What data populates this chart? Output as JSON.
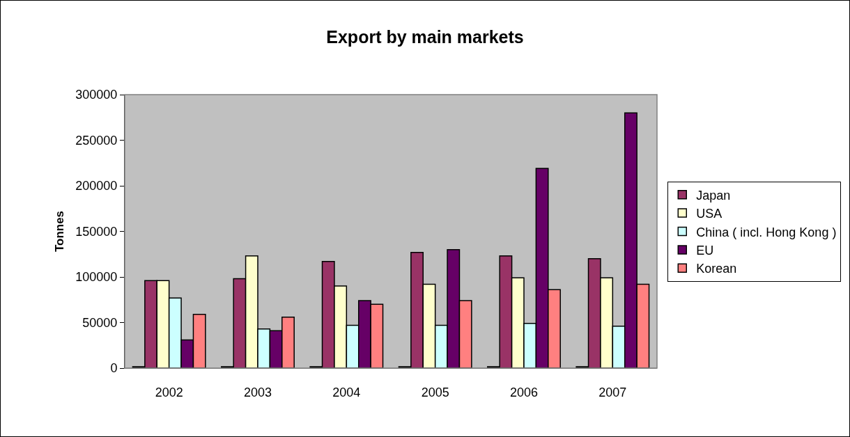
{
  "chart_data": {
    "type": "bar",
    "title": "Export by main markets",
    "ylabel": "Tonnes",
    "categories": [
      "2002",
      "2003",
      "2004",
      "2005",
      "2006",
      "2007"
    ],
    "series": [
      {
        "color": "#000000",
        "values": [
          1500,
          1500,
          1500,
          1500,
          1500,
          1500
        ]
      },
      {
        "name": "Japan",
        "color": "#993366",
        "values": [
          96000,
          98000,
          117000,
          127000,
          123000,
          120000
        ]
      },
      {
        "name": "USA",
        "color": "#ffffcc",
        "values": [
          96000,
          123000,
          90000,
          92000,
          99000,
          99000
        ]
      },
      {
        "name": "China ( incl. Hong Kong )",
        "color": "#ccffff",
        "values": [
          77000,
          43000,
          47000,
          47000,
          49000,
          46000
        ]
      },
      {
        "name": "EU",
        "color": "#660066",
        "values": [
          31000,
          41000,
          74000,
          130000,
          219000,
          280000
        ]
      },
      {
        "name": "Korean",
        "color": "#ff8080",
        "values": [
          59000,
          56000,
          70000,
          74000,
          86000,
          92000
        ]
      }
    ],
    "ylim": [
      0,
      300000
    ],
    "yticks": [
      0,
      50000,
      100000,
      150000,
      200000,
      250000,
      300000
    ],
    "grid": false,
    "legend": "right"
  }
}
